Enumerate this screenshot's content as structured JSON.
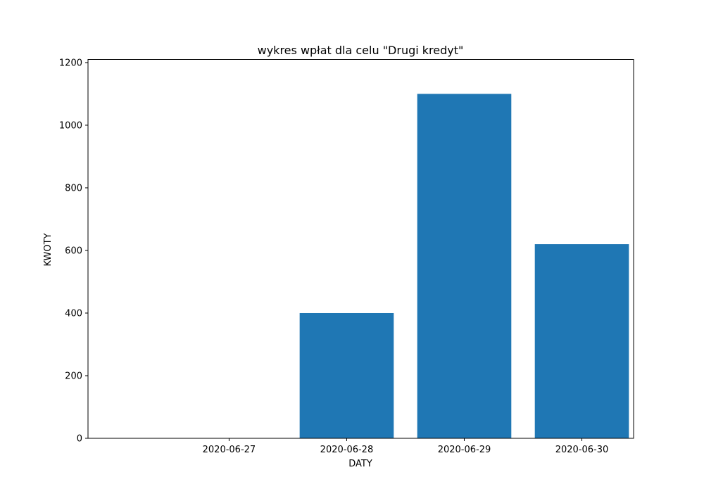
{
  "chart_data": {
    "type": "bar",
    "title": "wykres wpłat dla celu \"Drugi kredyt\"",
    "xlabel": "DATY",
    "ylabel": "KWOTY",
    "categories": [
      "2020-06-27",
      "2020-06-28",
      "2020-06-29",
      "2020-06-30"
    ],
    "values": [
      0,
      400,
      1100,
      620
    ],
    "ylim": [
      0,
      1210
    ],
    "yticks": [
      0,
      200,
      400,
      600,
      800,
      1000,
      1200
    ],
    "grid": false,
    "bar_color": "#1f77b4"
  }
}
